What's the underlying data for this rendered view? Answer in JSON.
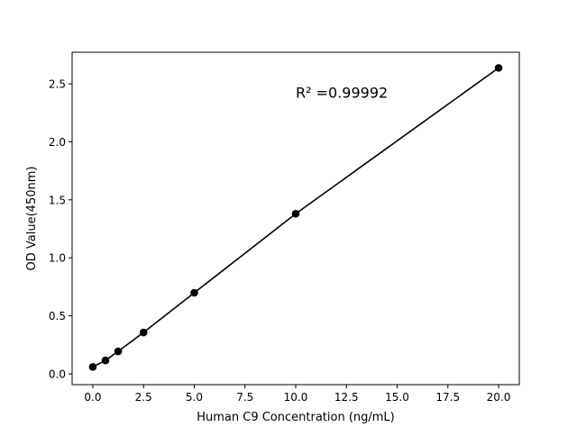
{
  "chart_data": {
    "type": "scatter",
    "title": "",
    "xlabel": "Human C9 Concentration (ng/mL)",
    "ylabel": "OD Value(450nm)",
    "xlim": [
      -1.02,
      21.02
    ],
    "ylim": [
      -0.093,
      2.772
    ],
    "xticks": [
      "0.0",
      "2.5",
      "5.0",
      "7.5",
      "10.0",
      "12.5",
      "15.0",
      "17.5",
      "20.0"
    ],
    "yticks": [
      "0.0",
      "0.5",
      "1.0",
      "1.5",
      "2.0",
      "2.5"
    ],
    "grid": false,
    "series": [
      {
        "x": [
          0,
          0.625,
          1.25,
          2.5,
          5,
          10,
          20
        ],
        "y": [
          0.06,
          0.116,
          0.194,
          0.357,
          0.699,
          1.38,
          2.637
        ],
        "marker": "circle",
        "line": true,
        "color": "#000000"
      }
    ],
    "annotation": {
      "text": "R² =0.99992",
      "x": 10,
      "y": 2.38
    }
  }
}
